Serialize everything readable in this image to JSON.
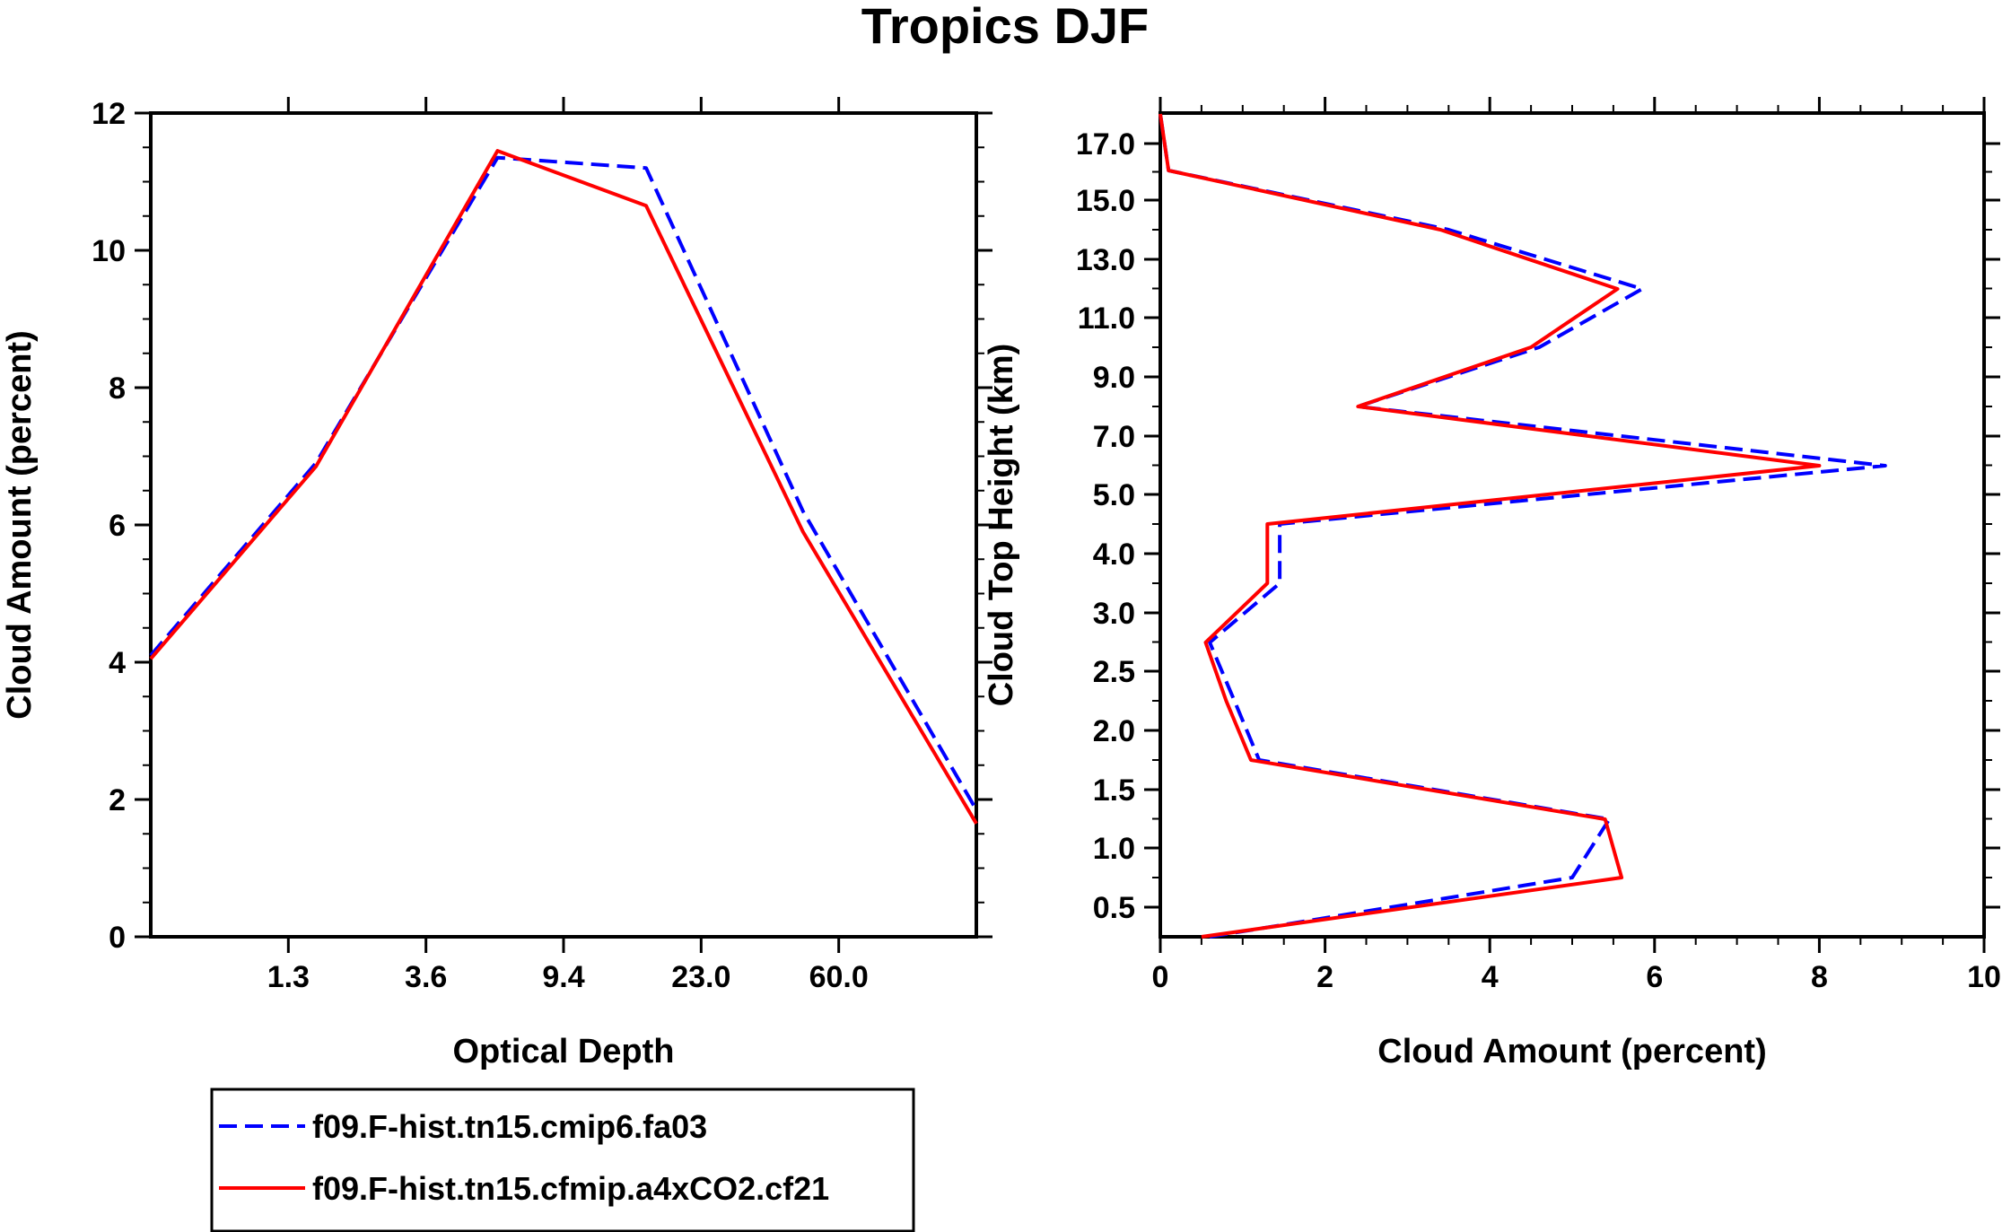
{
  "title": "Tropics DJF",
  "chart_data": [
    {
      "type": "line",
      "xlabel": "Optical Depth",
      "ylabel": "Cloud Amount (percent)",
      "ylim": [
        0,
        12
      ],
      "yticks": [
        "0",
        "2",
        "4",
        "6",
        "8",
        "10",
        "12"
      ],
      "xticks": [
        "1.3",
        "3.6",
        "9.4",
        "23.0",
        "60.0"
      ],
      "x_bin_index": [
        0,
        1,
        2,
        3,
        4,
        5,
        6
      ],
      "series": [
        {
          "name": "f09.F-hist.tn15.cmip6.fa03",
          "color": "#0000ff",
          "style": "dashed",
          "values": [
            4.1,
            6.9,
            11.35,
            11.2,
            6.2,
            1.85
          ]
        },
        {
          "name": "f09.F-hist.tn15.cfmip.a4xCO2.cf21",
          "color": "#ff0000",
          "style": "solid",
          "values": [
            4.05,
            6.85,
            11.45,
            10.65,
            5.9,
            1.65
          ]
        }
      ]
    },
    {
      "type": "line",
      "xlabel": "Cloud Amount (percent)",
      "ylabel": "Cloud Top Height (km)",
      "xlim": [
        0,
        10
      ],
      "xticks": [
        "0",
        "2",
        "4",
        "6",
        "8",
        "10"
      ],
      "yticks": [
        "0.5",
        "1.0",
        "1.5",
        "2.0",
        "2.5",
        "3.0",
        "4.0",
        "5.0",
        "7.0",
        "9.0",
        "11.0",
        "13.0",
        "15.0",
        "17.0"
      ],
      "y_level_index": [
        0.9,
        1.8,
        2.8,
        3.8,
        4.8,
        5.8,
        6.8,
        7.8,
        8.8,
        9.8,
        10.8,
        11.8,
        12.8,
        13.8,
        14.8,
        15.8,
        16.8,
        17.8
      ],
      "series": [
        {
          "name": "f09.F-hist.tn15.cmip6.fa03",
          "color": "#0000ff",
          "style": "dashed",
          "values": [
            0.6,
            5.0,
            5.45,
            1.2,
            0.9,
            0.6,
            1.45,
            1.45,
            8.8,
            2.4,
            4.6,
            5.85,
            3.5,
            0.1,
            0.0
          ]
        },
        {
          "name": "f09.F-hist.tn15.cfmip.a4xCO2.cf21",
          "color": "#ff0000",
          "style": "solid",
          "values": [
            0.5,
            5.6,
            5.4,
            1.1,
            0.8,
            0.55,
            1.3,
            1.3,
            8.0,
            2.4,
            4.5,
            5.55,
            3.4,
            0.1,
            0.0
          ]
        }
      ]
    }
  ],
  "legend": [
    {
      "label": "f09.F-hist.tn15.cmip6.fa03",
      "color": "#0000ff",
      "style": "dashed"
    },
    {
      "label": "f09.F-hist.tn15.cfmip.a4xCO2.cf21",
      "color": "#ff0000",
      "style": "solid"
    }
  ]
}
